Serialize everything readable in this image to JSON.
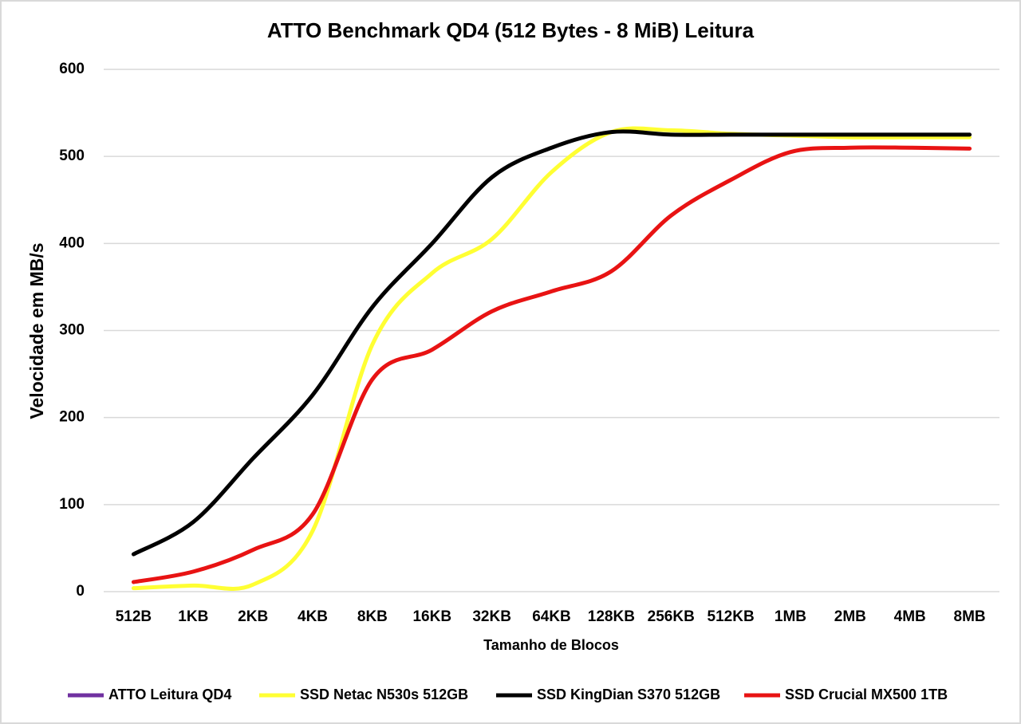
{
  "chart_data": {
    "type": "line",
    "title": "ATTO Benchmark QD4 (512 Bytes - 8 MiB) Leitura",
    "x_label": "Tamanho de Blocos",
    "y_label": "Velocidade em MB/s",
    "categories": [
      "512B",
      "1KB",
      "2KB",
      "4KB",
      "8KB",
      "16KB",
      "32KB",
      "64KB",
      "128KB",
      "256KB",
      "512KB",
      "1MB",
      "2MB",
      "4MB",
      "8MB"
    ],
    "series": [
      {
        "name": "ATTO Leitura QD4",
        "color": "#7030a0",
        "values": [
          null,
          null,
          null,
          null,
          null,
          null,
          null,
          null,
          null,
          null,
          null,
          null,
          null,
          null,
          null
        ]
      },
      {
        "name": "SSD Netac N530s 512GB",
        "color": "#ffff33",
        "values": [
          4,
          7,
          8,
          70,
          284,
          366,
          405,
          482,
          528,
          530,
          526,
          524,
          522,
          522,
          522
        ]
      },
      {
        "name": "SSD KingDian S370 512GB",
        "color": "#000000",
        "values": [
          43,
          80,
          153,
          226,
          327,
          400,
          476,
          510,
          528,
          525,
          525,
          525,
          525,
          525,
          525
        ]
      },
      {
        "name": "SSD Crucial MX500 1TB",
        "color": "#e81313",
        "values": [
          11,
          23,
          48,
          89,
          244,
          278,
          322,
          345,
          368,
          432,
          473,
          505,
          510,
          510,
          509
        ]
      }
    ],
    "ylim": [
      0,
      600
    ],
    "yticks": [
      0,
      100,
      200,
      300,
      400,
      500,
      600
    ],
    "grid": true,
    "legend": "bottom"
  }
}
